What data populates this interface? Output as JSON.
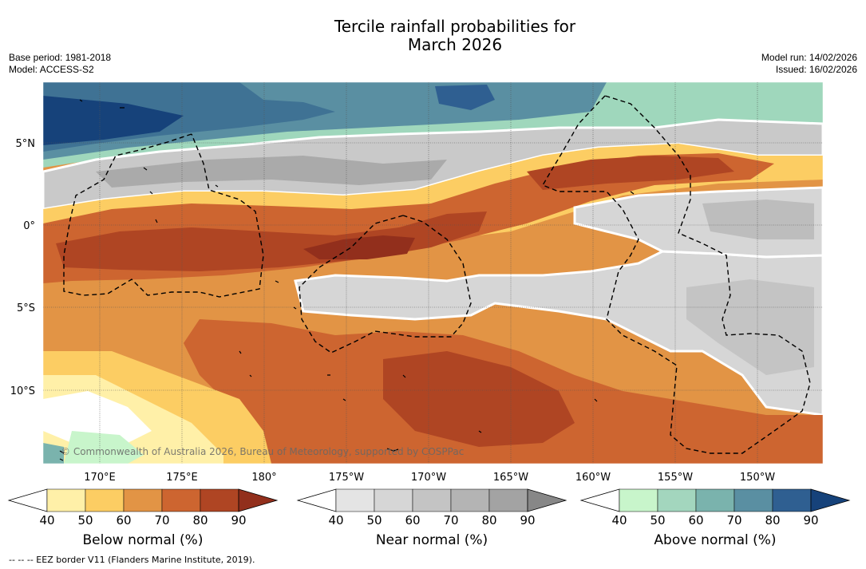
{
  "title": {
    "line1": "Tercile rainfall probabilities for",
    "line2": "March 2026"
  },
  "meta": {
    "base_period": "Base period: 1981-2018",
    "model": "Model: ACCESS-S2",
    "model_run": "Model run: 14/02/2026",
    "issued": "Issued: 16/02/2026"
  },
  "map": {
    "lat_labels": [
      "5°N",
      "0°",
      "5°S",
      "10°S"
    ],
    "lon_labels": [
      "170°E",
      "175°E",
      "180°",
      "175°W",
      "170°W",
      "165°W",
      "160°W",
      "155°W",
      "150°W"
    ],
    "copyright": "© Commonwealth of Australia 2026, Bureau of Meteorology, supported by COSPPac"
  },
  "colorbars": [
    {
      "label": "Below normal (%)",
      "ticks": [
        "40",
        "50",
        "60",
        "70",
        "80",
        "90"
      ],
      "colors": [
        "#ffffff",
        "#fff0a8",
        "#fccd63",
        "#e29445",
        "#cd6530",
        "#af4523",
        "#922f1c"
      ]
    },
    {
      "label": "Near normal (%)",
      "ticks": [
        "40",
        "50",
        "60",
        "70",
        "80",
        "90"
      ],
      "colors": [
        "#ffffff",
        "#e4e4e4",
        "#d6d6d6",
        "#c4c4c4",
        "#b4b4b4",
        "#a3a3a3",
        "#878787"
      ]
    },
    {
      "label": "Above normal (%)",
      "ticks": [
        "40",
        "50",
        "60",
        "70",
        "80",
        "90"
      ],
      "colors": [
        "#ffffff",
        "#c8f5cb",
        "#a3d6be",
        "#7ab3ad",
        "#5a8fa2",
        "#2f5f91",
        "#16427a"
      ]
    }
  ],
  "footnote": "-- -- -- EEZ border V11 (Flanders Marine Institute, 2019)."
}
